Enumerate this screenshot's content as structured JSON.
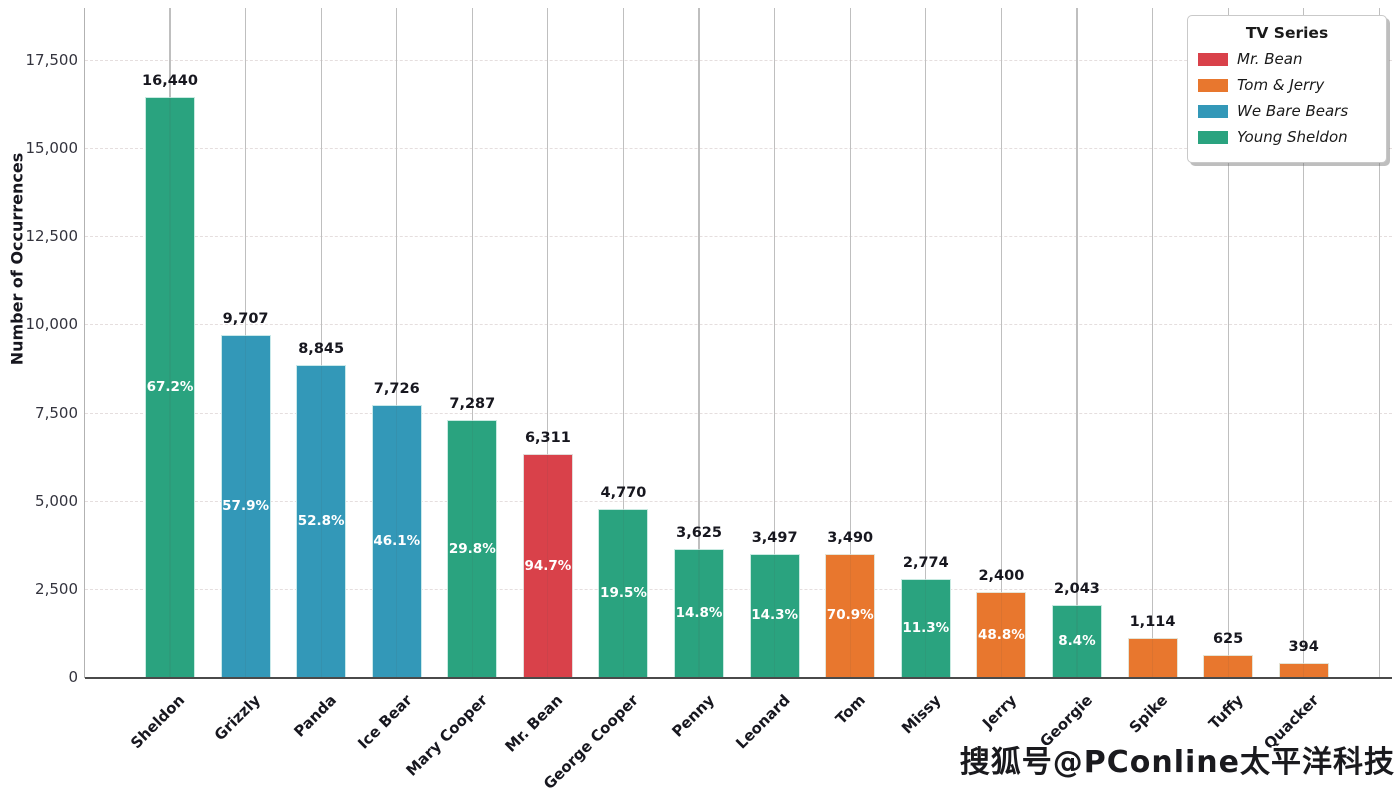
{
  "watermark": "搜狐号@PConline太平洋科技",
  "chart_data": {
    "type": "bar",
    "title": "",
    "xlabel": "",
    "ylabel": "Number of Occurrences",
    "ylim": [
      0,
      19000
    ],
    "grid": {
      "vertical": "solid",
      "horizontal": "dashed"
    },
    "yticks": [
      {
        "value": 0,
        "label": "0"
      },
      {
        "value": 2500,
        "label": "2,500"
      },
      {
        "value": 5000,
        "label": "5,000"
      },
      {
        "value": 7500,
        "label": "7,500"
      },
      {
        "value": 10000,
        "label": "10,000"
      },
      {
        "value": 12500,
        "label": "12,500"
      },
      {
        "value": 15000,
        "label": "15,000"
      },
      {
        "value": 17500,
        "label": "17,500"
      }
    ],
    "legend": {
      "title": "TV Series",
      "position": "upper right",
      "entries": [
        {
          "label": "Mr. Bean",
          "color": "#d9414a"
        },
        {
          "label": "Tom & Jerry",
          "color": "#e8772e"
        },
        {
          "label": "We Bare Bears",
          "color": "#3398b8"
        },
        {
          "label": "Young Sheldon",
          "color": "#2aa37f"
        }
      ]
    },
    "series_colors": {
      "Mr. Bean": "#d9414a",
      "Tom & Jerry": "#e8772e",
      "We Bare Bears": "#3398b8",
      "Young Sheldon": "#2aa37f"
    },
    "bars": [
      {
        "category": "Sheldon",
        "series": "Young Sheldon",
        "value": 16440,
        "value_label": "16,440",
        "percent_label": "67.2%"
      },
      {
        "category": "Grizzly",
        "series": "We Bare Bears",
        "value": 9707,
        "value_label": "9,707",
        "percent_label": "57.9%"
      },
      {
        "category": "Panda",
        "series": "We Bare Bears",
        "value": 8845,
        "value_label": "8,845",
        "percent_label": "52.8%"
      },
      {
        "category": "Ice Bear",
        "series": "We Bare Bears",
        "value": 7726,
        "value_label": "7,726",
        "percent_label": "46.1%"
      },
      {
        "category": "Mary Cooper",
        "series": "Young Sheldon",
        "value": 7287,
        "value_label": "7,287",
        "percent_label": "29.8%"
      },
      {
        "category": "Mr. Bean",
        "series": "Mr. Bean",
        "value": 6311,
        "value_label": "6,311",
        "percent_label": "94.7%"
      },
      {
        "category": "George Cooper",
        "series": "Young Sheldon",
        "value": 4770,
        "value_label": "4,770",
        "percent_label": "19.5%"
      },
      {
        "category": "Penny",
        "series": "Young Sheldon",
        "value": 3625,
        "value_label": "3,625",
        "percent_label": "14.8%"
      },
      {
        "category": "Leonard",
        "series": "Young Sheldon",
        "value": 3497,
        "value_label": "3,497",
        "percent_label": "14.3%"
      },
      {
        "category": "Tom",
        "series": "Tom & Jerry",
        "value": 3490,
        "value_label": "3,490",
        "percent_label": "70.9%"
      },
      {
        "category": "Missy",
        "series": "Young Sheldon",
        "value": 2774,
        "value_label": "2,774",
        "percent_label": "11.3%"
      },
      {
        "category": "Jerry",
        "series": "Tom & Jerry",
        "value": 2400,
        "value_label": "2,400",
        "percent_label": "48.8%"
      },
      {
        "category": "Georgie",
        "series": "Young Sheldon",
        "value": 2043,
        "value_label": "2,043",
        "percent_label": "8.4%"
      },
      {
        "category": "Spike",
        "series": "Tom & Jerry",
        "value": 1114,
        "value_label": "1,114",
        "percent_label": null
      },
      {
        "category": "Tuffy",
        "series": "Tom & Jerry",
        "value": 625,
        "value_label": "625",
        "percent_label": null
      },
      {
        "category": "Quacker",
        "series": "Tom & Jerry",
        "value": 394,
        "value_label": "394",
        "percent_label": null
      }
    ]
  }
}
